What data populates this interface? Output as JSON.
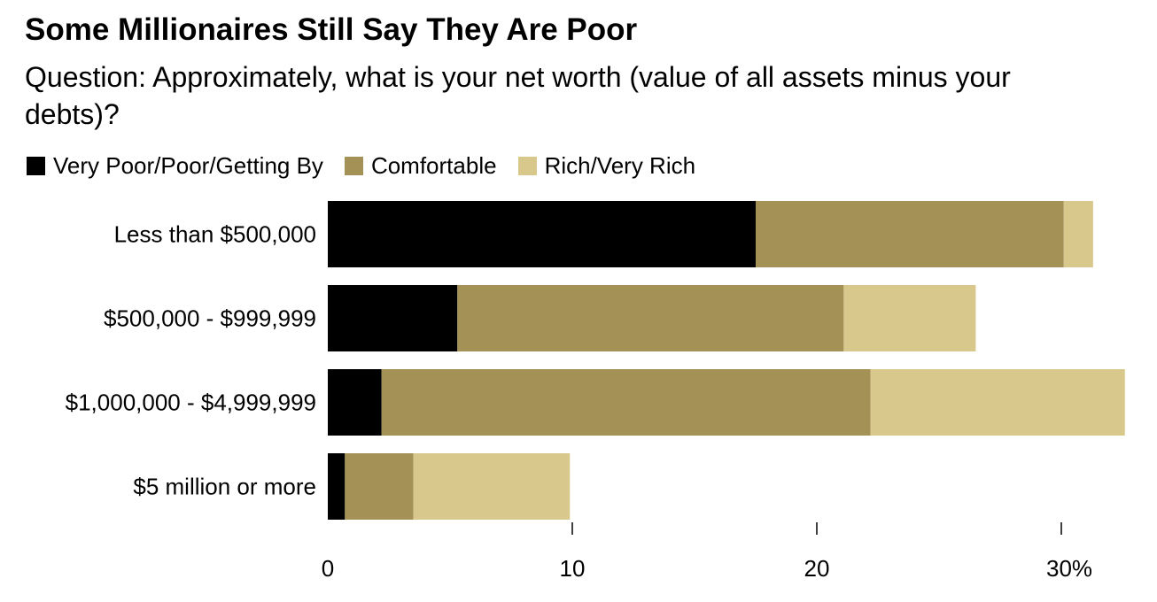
{
  "chart_data": {
    "type": "bar",
    "orientation": "horizontal",
    "stacked": true,
    "title": "Some Millionaires Still Say They Are Poor",
    "subtitle": "Question: Approximately, what is your net worth (value of all assets minus your debts)?",
    "categories": [
      "Less than $500,000",
      "$500,000 - $999,999",
      "$1,000,000 - $4,999,999",
      "$5 million or more"
    ],
    "series": [
      {
        "name": "Very Poor/Poor/Getting By",
        "color": "#000000",
        "values": [
          17.5,
          5.3,
          2.2,
          0.7
        ]
      },
      {
        "name": "Comfortable",
        "color": "#a39155",
        "values": [
          12.6,
          15.8,
          20.0,
          2.8
        ]
      },
      {
        "name": "Rich/Very Rich",
        "color": "#d9c88c",
        "values": [
          1.2,
          5.4,
          10.4,
          6.4
        ]
      }
    ],
    "xticks": [
      "0",
      "10",
      "20",
      "30%"
    ],
    "xtick_values": [
      0,
      10,
      20,
      30
    ],
    "xlim": [
      0,
      32.5
    ],
    "grid": false,
    "legend_position": "top-left"
  }
}
